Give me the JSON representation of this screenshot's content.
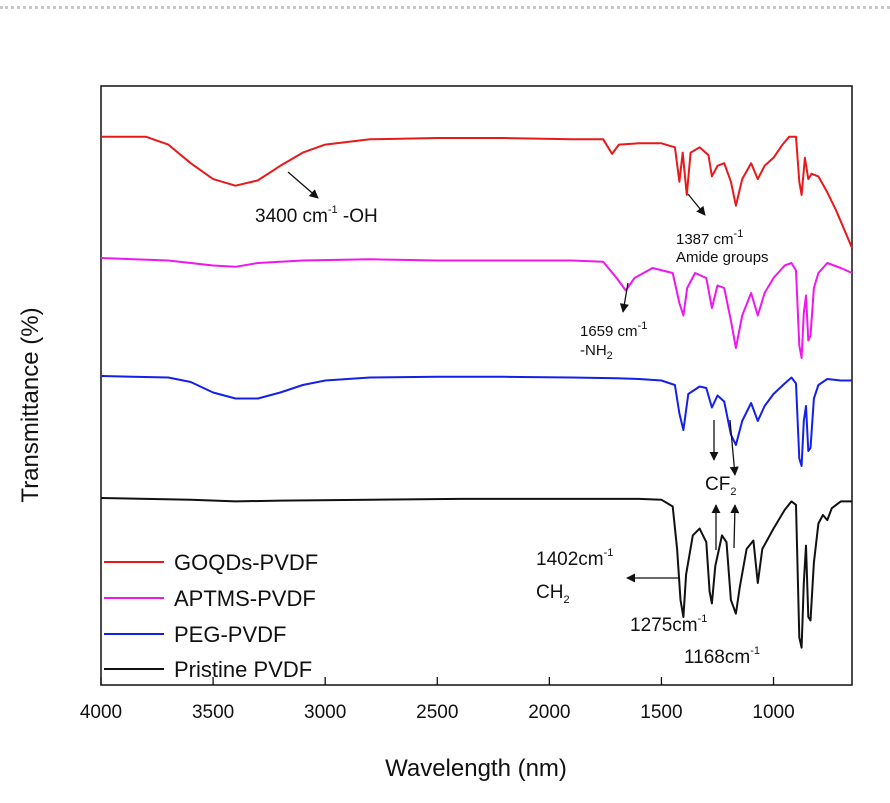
{
  "chart_data": {
    "type": "line",
    "xlabel": "Wavelength (nm)",
    "ylabel": "Transmittance (%)",
    "xlim": [
      4000,
      650
    ],
    "x_reversed": true,
    "x_ticks": [
      4000,
      3500,
      3000,
      2500,
      2000,
      1500,
      1000
    ],
    "legend_position": "bottom-left",
    "series": [
      {
        "name": "GOQDs-PVDF",
        "color": "#e8191b",
        "points": [
          [
            4000,
            0.01
          ],
          [
            3800,
            0.01
          ],
          [
            3700,
            0.04
          ],
          [
            3600,
            0.11
          ],
          [
            3500,
            0.17
          ],
          [
            3400,
            0.195
          ],
          [
            3300,
            0.175
          ],
          [
            3200,
            0.12
          ],
          [
            3100,
            0.07
          ],
          [
            3000,
            0.04
          ],
          [
            2800,
            0.02
          ],
          [
            2500,
            0.015
          ],
          [
            2200,
            0.015
          ],
          [
            1900,
            0.02
          ],
          [
            1760,
            0.02
          ],
          [
            1720,
            0.075
          ],
          [
            1690,
            0.04
          ],
          [
            1600,
            0.035
          ],
          [
            1500,
            0.035
          ],
          [
            1440,
            0.05
          ],
          [
            1420,
            0.18
          ],
          [
            1405,
            0.07
          ],
          [
            1387,
            0.23
          ],
          [
            1370,
            0.07
          ],
          [
            1330,
            0.05
          ],
          [
            1290,
            0.08
          ],
          [
            1275,
            0.16
          ],
          [
            1250,
            0.12
          ],
          [
            1220,
            0.11
          ],
          [
            1190,
            0.18
          ],
          [
            1168,
            0.27
          ],
          [
            1140,
            0.17
          ],
          [
            1100,
            0.11
          ],
          [
            1070,
            0.17
          ],
          [
            1040,
            0.12
          ],
          [
            1000,
            0.09
          ],
          [
            960,
            0.04
          ],
          [
            930,
            0.01
          ],
          [
            900,
            0.01
          ],
          [
            885,
            0.18
          ],
          [
            875,
            0.23
          ],
          [
            860,
            0.09
          ],
          [
            845,
            0.17
          ],
          [
            830,
            0.15
          ],
          [
            800,
            0.16
          ],
          [
            760,
            0.22
          ],
          [
            720,
            0.29
          ],
          [
            650,
            0.43
          ]
        ]
      },
      {
        "name": "APTMS-PVDF",
        "color": "#ee17ee",
        "points": [
          [
            4000,
            0.0
          ],
          [
            3700,
            0.01
          ],
          [
            3500,
            0.03
          ],
          [
            3400,
            0.035
          ],
          [
            3300,
            0.02
          ],
          [
            3100,
            0.01
          ],
          [
            2800,
            0.005
          ],
          [
            2500,
            0.01
          ],
          [
            2200,
            0.01
          ],
          [
            1900,
            0.01
          ],
          [
            1760,
            0.015
          ],
          [
            1700,
            0.08
          ],
          [
            1659,
            0.13
          ],
          [
            1620,
            0.08
          ],
          [
            1540,
            0.04
          ],
          [
            1450,
            0.06
          ],
          [
            1420,
            0.18
          ],
          [
            1402,
            0.23
          ],
          [
            1385,
            0.12
          ],
          [
            1350,
            0.06
          ],
          [
            1300,
            0.08
          ],
          [
            1275,
            0.2
          ],
          [
            1250,
            0.11
          ],
          [
            1220,
            0.12
          ],
          [
            1190,
            0.25
          ],
          [
            1168,
            0.36
          ],
          [
            1140,
            0.23
          ],
          [
            1100,
            0.14
          ],
          [
            1070,
            0.23
          ],
          [
            1040,
            0.14
          ],
          [
            1000,
            0.08
          ],
          [
            950,
            0.03
          ],
          [
            920,
            0.02
          ],
          [
            900,
            0.05
          ],
          [
            885,
            0.35
          ],
          [
            875,
            0.4
          ],
          [
            865,
            0.22
          ],
          [
            855,
            0.15
          ],
          [
            845,
            0.33
          ],
          [
            835,
            0.31
          ],
          [
            820,
            0.12
          ],
          [
            800,
            0.06
          ],
          [
            760,
            0.02
          ],
          [
            700,
            0.04
          ],
          [
            650,
            0.06
          ]
        ]
      },
      {
        "name": "PEG-PVDF",
        "color": "#1420e8",
        "points": [
          [
            4000,
            0.0
          ],
          [
            3700,
            0.01
          ],
          [
            3600,
            0.04
          ],
          [
            3500,
            0.11
          ],
          [
            3400,
            0.15
          ],
          [
            3300,
            0.15
          ],
          [
            3200,
            0.11
          ],
          [
            3100,
            0.06
          ],
          [
            3000,
            0.03
          ],
          [
            2800,
            0.01
          ],
          [
            2500,
            0.005
          ],
          [
            2200,
            0.005
          ],
          [
            1900,
            0.01
          ],
          [
            1700,
            0.015
          ],
          [
            1600,
            0.02
          ],
          [
            1500,
            0.03
          ],
          [
            1440,
            0.06
          ],
          [
            1420,
            0.25
          ],
          [
            1402,
            0.36
          ],
          [
            1380,
            0.12
          ],
          [
            1330,
            0.07
          ],
          [
            1300,
            0.08
          ],
          [
            1275,
            0.21
          ],
          [
            1250,
            0.13
          ],
          [
            1220,
            0.17
          ],
          [
            1190,
            0.39
          ],
          [
            1168,
            0.46
          ],
          [
            1140,
            0.3
          ],
          [
            1100,
            0.18
          ],
          [
            1070,
            0.3
          ],
          [
            1040,
            0.2
          ],
          [
            1000,
            0.12
          ],
          [
            950,
            0.05
          ],
          [
            920,
            0.01
          ],
          [
            900,
            0.05
          ],
          [
            885,
            0.55
          ],
          [
            875,
            0.6
          ],
          [
            865,
            0.3
          ],
          [
            855,
            0.2
          ],
          [
            845,
            0.5
          ],
          [
            835,
            0.48
          ],
          [
            820,
            0.15
          ],
          [
            800,
            0.06
          ],
          [
            760,
            0.02
          ],
          [
            700,
            0.03
          ],
          [
            650,
            0.03
          ]
        ]
      },
      {
        "name": "Pristine PVDF",
        "color": "#111111",
        "points": [
          [
            4000,
            0.0
          ],
          [
            3600,
            0.01
          ],
          [
            3400,
            0.02
          ],
          [
            3200,
            0.015
          ],
          [
            2800,
            0.01
          ],
          [
            2400,
            0.005
          ],
          [
            2000,
            0.005
          ],
          [
            1700,
            0.005
          ],
          [
            1600,
            0.005
          ],
          [
            1500,
            0.01
          ],
          [
            1450,
            0.05
          ],
          [
            1430,
            0.3
          ],
          [
            1415,
            0.6
          ],
          [
            1402,
            0.7
          ],
          [
            1390,
            0.45
          ],
          [
            1360,
            0.22
          ],
          [
            1330,
            0.18
          ],
          [
            1300,
            0.26
          ],
          [
            1285,
            0.55
          ],
          [
            1275,
            0.62
          ],
          [
            1260,
            0.4
          ],
          [
            1230,
            0.22
          ],
          [
            1210,
            0.26
          ],
          [
            1190,
            0.6
          ],
          [
            1168,
            0.68
          ],
          [
            1150,
            0.52
          ],
          [
            1120,
            0.3
          ],
          [
            1090,
            0.25
          ],
          [
            1070,
            0.5
          ],
          [
            1050,
            0.3
          ],
          [
            1000,
            0.18
          ],
          [
            950,
            0.07
          ],
          [
            920,
            0.02
          ],
          [
            900,
            0.04
          ],
          [
            885,
            0.82
          ],
          [
            875,
            0.88
          ],
          [
            865,
            0.5
          ],
          [
            855,
            0.28
          ],
          [
            845,
            0.7
          ],
          [
            835,
            0.72
          ],
          [
            820,
            0.38
          ],
          [
            800,
            0.15
          ],
          [
            780,
            0.1
          ],
          [
            760,
            0.13
          ],
          [
            740,
            0.06
          ],
          [
            700,
            0.02
          ],
          [
            650,
            0.02
          ]
        ]
      }
    ],
    "annotations": {
      "oh": {
        "value": "3400 cm",
        "sup": "-1",
        "suffix": " -OH"
      },
      "amide": {
        "value": "1387 cm",
        "sup": "-1",
        "line2": "Amide groups"
      },
      "nh2": {
        "value": "1659 cm",
        "sup": "-1",
        "line2": "-NH",
        "line2_sub": "2"
      },
      "cf2": {
        "label": "CF",
        "sub": "2"
      },
      "ch2": {
        "value": "1402cm",
        "sup": "-1",
        "line2": "CH",
        "line2_sub": "2"
      },
      "p1275": {
        "value": "1275cm",
        "sup": "-1"
      },
      "p1168": {
        "value": "1168cm",
        "sup": "-1"
      }
    }
  }
}
